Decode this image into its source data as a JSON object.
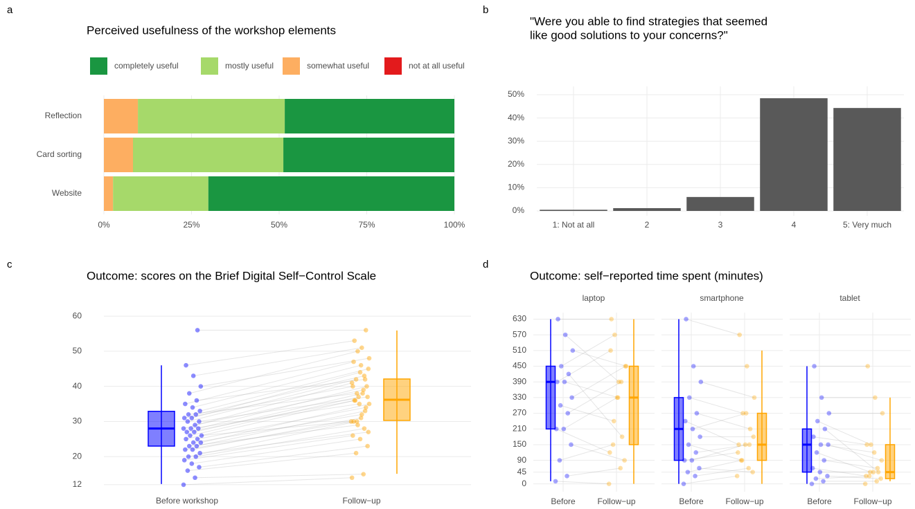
{
  "chart_data": [
    {
      "type": "stacked_barh",
      "panel_label": "a",
      "title": "Perceived usefulness of the workshop elements",
      "categories": [
        "Reflection",
        "Card sorting",
        "Website"
      ],
      "series": [
        {
          "name": "not at all useful",
          "color": "#e31a1c",
          "values": [
            0,
            0,
            0
          ]
        },
        {
          "name": "somewhat useful",
          "color": "#fdae61",
          "values": [
            9.7,
            8.3,
            2.6
          ]
        },
        {
          "name": "mostly useful",
          "color": "#a6d96a",
          "values": [
            41.9,
            42.9,
            27.2
          ]
        },
        {
          "name": "completely useful",
          "color": "#1a9641",
          "values": [
            48.4,
            48.8,
            70.2
          ]
        }
      ],
      "xlim": [
        0,
        100
      ],
      "xticks": [
        {
          "value": 0,
          "label": "0%"
        },
        {
          "value": 25,
          "label": "25%"
        },
        {
          "value": 50,
          "label": "50%"
        },
        {
          "value": 75,
          "label": "75%"
        },
        {
          "value": 100,
          "label": "100%"
        }
      ],
      "grid": true
    },
    {
      "type": "bar",
      "panel_label": "b",
      "title": [
        "\"Were you able to find strategies that seemed",
        "like good solutions to your concerns?\""
      ],
      "categories": [
        "1: Not at all",
        "2",
        "3",
        "4",
        "5: Very much"
      ],
      "values": [
        0.5,
        1.2,
        6,
        48.5,
        44.3
      ],
      "color": "#595959",
      "ylim": [
        0,
        50
      ],
      "yticks": [
        {
          "value": 0,
          "label": "0%"
        },
        {
          "value": 10,
          "label": "10%"
        },
        {
          "value": 20,
          "label": "20%"
        },
        {
          "value": 30,
          "label": "30%"
        },
        {
          "value": 40,
          "label": "40%"
        },
        {
          "value": 50,
          "label": "50%"
        }
      ],
      "grid": true
    },
    {
      "type": "box",
      "panel_label": "c",
      "title": "Outcome: scores on the Brief Digital Self−Control Scale",
      "ylim": [
        11,
        61
      ],
      "yticks": [
        12,
        20,
        30,
        40,
        50,
        60
      ],
      "grid": true,
      "groups": [
        {
          "name": "Before workshop",
          "color": "#0000ff",
          "whislo": 12.2,
          "q1": 23,
          "med": 28,
          "q3": 32.9,
          "whishi": 46,
          "points": [
            12,
            14,
            16,
            17,
            18,
            19,
            20,
            20,
            21,
            22,
            22,
            23,
            23,
            24,
            24,
            25,
            25,
            26,
            26,
            27,
            27,
            28,
            28,
            28,
            29,
            30,
            30,
            31,
            31,
            32,
            32,
            33,
            34,
            35,
            36,
            38,
            40,
            43,
            46,
            56
          ]
        },
        {
          "name": "Follow−up",
          "color": "#ffa500",
          "whislo": 15.1,
          "q1": 30.3,
          "med": 36.2,
          "q3": 42.1,
          "whishi": 55.9,
          "points": [
            14,
            15,
            21,
            23,
            25,
            26,
            28,
            30,
            27,
            31,
            30,
            33,
            29,
            35,
            32,
            36,
            34,
            37,
            30,
            38,
            36,
            40,
            35,
            41,
            39,
            42,
            37,
            44,
            40,
            43,
            38,
            45,
            46,
            47,
            42,
            50,
            48,
            51,
            53,
            56
          ]
        }
      ]
    },
    {
      "type": "box_facets",
      "panel_label": "d",
      "title": "Outcome: self−reported time spent (minutes)",
      "ylim": [
        -30,
        655
      ],
      "yticks": [
        0,
        45,
        90,
        150,
        210,
        270,
        330,
        390,
        450,
        510,
        570,
        630
      ],
      "grid": true,
      "facets": [
        {
          "name": "laptop",
          "groups": [
            {
              "name": "Before",
              "color": "#0000ff",
              "whislo": 10,
              "q1": 210,
              "med": 390,
              "q3": 450,
              "whishi": 630,
              "points": [
                10,
                30,
                90,
                150,
                210,
                210,
                270,
                300,
                330,
                390,
                390,
                420,
                450,
                510,
                570,
                630
              ]
            },
            {
              "name": "Follow−up",
              "color": "#ffa500",
              "whislo": 0,
              "q1": 150,
              "med": 330,
              "q3": 450,
              "whishi": 630,
              "points": [
                0,
                60,
                150,
                90,
                330,
                120,
                390,
                240,
                450,
                330,
                510,
                180,
                570,
                450,
                390,
                630
              ]
            }
          ]
        },
        {
          "name": "smartphone",
          "groups": [
            {
              "name": "Before",
              "color": "#0000ff",
              "whislo": 0,
              "q1": 90,
              "med": 210,
              "q3": 330,
              "whishi": 630,
              "points": [
                0,
                30,
                45,
                60,
                90,
                90,
                120,
                150,
                180,
                210,
                240,
                270,
                330,
                390,
                450,
                630
              ]
            },
            {
              "name": "Follow−up",
              "color": "#ffa500",
              "whislo": 0,
              "q1": 90,
              "med": 150,
              "q3": 270,
              "whishi": 510,
              "points": [
                30,
                60,
                90,
                45,
                150,
                120,
                150,
                90,
                180,
                270,
                150,
                210,
                270,
                330,
                450,
                570
              ]
            }
          ]
        },
        {
          "name": "tablet",
          "groups": [
            {
              "name": "Before",
              "color": "#0000ff",
              "whislo": 0,
              "q1": 45,
              "med": 150,
              "q3": 210,
              "whishi": 450,
              "points": [
                0,
                10,
                20,
                30,
                45,
                60,
                90,
                120,
                150,
                150,
                180,
                210,
                240,
                270,
                330,
                450
              ]
            },
            {
              "name": "Follow−up",
              "color": "#ffa500",
              "whislo": 10,
              "q1": 20,
              "med": 45,
              "q3": 150,
              "whishi": 330,
              "points": [
                0,
                10,
                30,
                20,
                45,
                30,
                60,
                45,
                90,
                120,
                150,
                45,
                150,
                270,
                330,
                450
              ]
            }
          ]
        }
      ]
    }
  ]
}
